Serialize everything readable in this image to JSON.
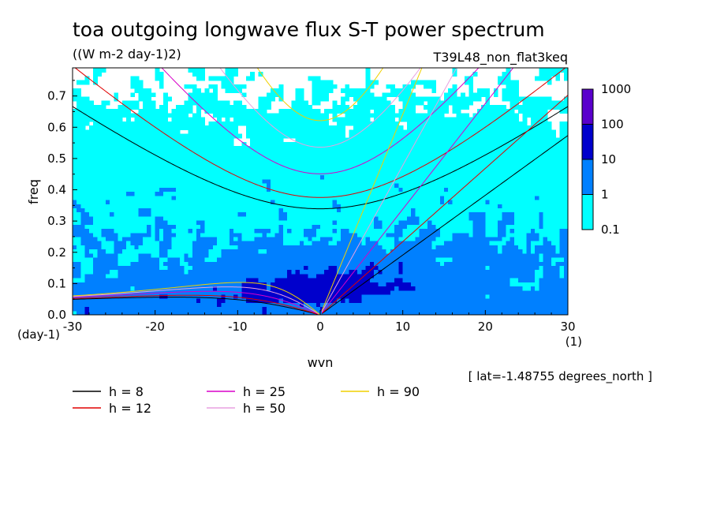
{
  "chart_data": {
    "type": "heatmap",
    "title": "toa outgoing longwave flux S-T power spectrum",
    "units": "((W m-2 day-1)2)",
    "run_label": "T39L48_non_flat3keq",
    "xlabel": "wvn",
    "ylabel": "freq",
    "x_unit": "(1)",
    "y_unit": "(day-1)",
    "latitude_note": "[ lat=-1.48755 degrees_north ]",
    "xlim": [
      -30,
      30
    ],
    "ylim": [
      0,
      0.79
    ],
    "x_ticks": [
      -30,
      -20,
      -10,
      0,
      10,
      20,
      30
    ],
    "x_tick_labels": [
      "-30",
      "-20",
      "-10",
      "0",
      "10",
      "20",
      "30"
    ],
    "y_ticks": [
      0,
      0.1,
      0.2,
      0.3,
      0.4,
      0.5,
      0.6,
      0.7
    ],
    "y_tick_labels": [
      "0.0",
      "0.1",
      "0.2",
      "0.3",
      "0.4",
      "0.5",
      "0.6",
      "0.7"
    ],
    "contour_levels": [
      0.1,
      1,
      10,
      100,
      1000
    ],
    "colorbar_labels": [
      "0.1",
      "1",
      "10",
      "100",
      "1000"
    ],
    "level_colors": [
      "#ffffff",
      "#00ffff",
      "#0080ff",
      "#0000cc",
      "#5a00cc"
    ],
    "dispersion_curves": [
      {
        "label": "h =  8",
        "h": 8,
        "color": "#000000"
      },
      {
        "label": "h = 12",
        "h": 12,
        "color": "#e00000"
      },
      {
        "label": "h = 25",
        "h": 25,
        "color": "#d800c8"
      },
      {
        "label": "h = 50",
        "h": 50,
        "color": "#e8a0e0"
      },
      {
        "label": "h = 90",
        "h": 90,
        "color": "#f0d000"
      }
    ]
  }
}
